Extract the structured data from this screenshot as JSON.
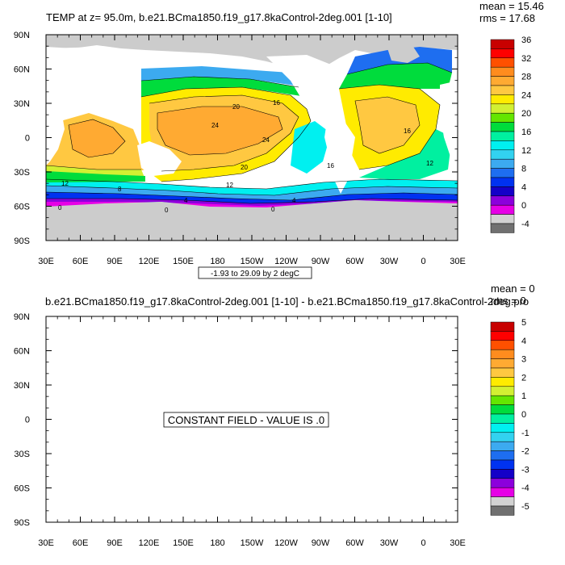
{
  "chart_data": [
    {
      "type": "heatmap",
      "title": "TEMP at z=  95.0m, b.e21.BCma1850.f19_g17.8kaControl-2deg.001 [1-10]",
      "stats": {
        "mean": "mean = 15.46",
        "rms": "rms = 17.68"
      },
      "x_ticks": [
        "30E",
        "60E",
        "90E",
        "120E",
        "150E",
        "180",
        "150W",
        "120W",
        "90W",
        "60W",
        "30W",
        "0",
        "30E"
      ],
      "y_ticks": [
        "90N",
        "60N",
        "30N",
        "0",
        "30S",
        "60S",
        "90S"
      ],
      "xlim": [
        30,
        390
      ],
      "ylim": [
        -90,
        90
      ],
      "colorbar_labels": [
        "36",
        "32",
        "28",
        "24",
        "20",
        "16",
        "12",
        "8",
        "4",
        "0",
        "-4"
      ],
      "colorbar_colors": [
        "#c80000",
        "#ff0000",
        "#ff5000",
        "#ff8c1e",
        "#ffaa32",
        "#ffc841",
        "#ffeb00",
        "#d2f032",
        "#64e600",
        "#00dc3c",
        "#00f0a0",
        "#00f0f0",
        "#32d2f0",
        "#3caaf0",
        "#1e6ef0",
        "#0032f0",
        "#1400c8",
        "#8c00dc",
        "#e600e6",
        "#d2d2d2",
        "#707070"
      ],
      "contour_labels": [
        "20",
        "16",
        "24",
        "24",
        "20",
        "16",
        "12",
        "12",
        "8",
        "4",
        "0",
        "0",
        "0",
        "4",
        "12",
        "16"
      ],
      "contour_info": "-1.93 to 29.09 by 2 degC"
    },
    {
      "type": "heatmap",
      "title": "b.e21.BCma1850.f19_g17.8kaControl-2deg.001 [1-10] - b.e21.BCma1850.f19_g17.8kaControl-2deg.pro",
      "stats": {
        "mean": "mean = 0",
        "rms": "rms = 0"
      },
      "x_ticks": [
        "30E",
        "60E",
        "90E",
        "120E",
        "150E",
        "180",
        "150W",
        "120W",
        "90W",
        "60W",
        "30W",
        "0",
        "30E"
      ],
      "y_ticks": [
        "90N",
        "60N",
        "30N",
        "0",
        "30S",
        "60S",
        "90S"
      ],
      "xlim": [
        30,
        390
      ],
      "ylim": [
        -90,
        90
      ],
      "colorbar_labels": [
        "5",
        "4",
        "3",
        "2",
        "1",
        "0",
        "-1",
        "-2",
        "-3",
        "-4",
        "-5"
      ],
      "colorbar_colors": [
        "#c80000",
        "#ff0000",
        "#ff5000",
        "#ff8c1e",
        "#ffaa32",
        "#ffc841",
        "#ffeb00",
        "#d2f032",
        "#64e600",
        "#00dc3c",
        "#00f0a0",
        "#00f0f0",
        "#32d2f0",
        "#3caaf0",
        "#1e6ef0",
        "#0032f0",
        "#1400c8",
        "#8c00dc",
        "#e600e6",
        "#d2d2d2",
        "#707070"
      ],
      "annotation": "CONSTANT FIELD - VALUE IS .0"
    }
  ]
}
